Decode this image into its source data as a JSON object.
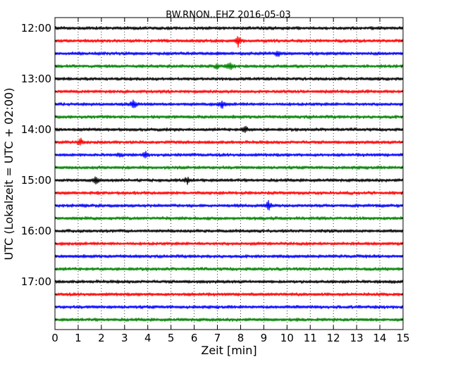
{
  "chart_data": {
    "type": "line",
    "title": "BW.RNON..EHZ 2016-05-03",
    "xlabel": "Zeit  [min]",
    "ylabel": "UTC (Lokalzeit = UTC + 02:00)",
    "xlim": [
      0,
      15
    ],
    "x_ticks": [
      0,
      1,
      2,
      3,
      4,
      5,
      6,
      7,
      8,
      9,
      10,
      11,
      12,
      13,
      14,
      15
    ],
    "x_tick_labels": [
      "0",
      "1",
      "2",
      "3",
      "4",
      "5",
      "6",
      "7",
      "8",
      "9",
      "10",
      "11",
      "12",
      "13",
      "14",
      "15"
    ],
    "y_tick_labels": [
      "12:00",
      "13:00",
      "14:00",
      "15:00",
      "16:00",
      "17:00"
    ],
    "y_tick_trace_index": [
      0,
      4,
      8,
      12,
      16,
      20
    ],
    "grid": "vertical dotted",
    "trace_colors": [
      "#000000",
      "#ff0000",
      "#0000ff",
      "#008000"
    ],
    "series": [
      {
        "start": "12:00",
        "color": "#000000",
        "events": []
      },
      {
        "start": "12:15",
        "color": "#ff0000",
        "events": [
          {
            "x": 7.9,
            "amp": 9
          }
        ]
      },
      {
        "start": "12:30",
        "color": "#0000ff",
        "events": [
          {
            "x": 9.6,
            "amp": 4
          }
        ]
      },
      {
        "start": "12:45",
        "color": "#008000",
        "events": [
          {
            "x": 7.0,
            "amp": 4
          },
          {
            "x": 7.55,
            "amp": 7
          }
        ]
      },
      {
        "start": "13:00",
        "color": "#000000",
        "events": []
      },
      {
        "start": "13:15",
        "color": "#ff0000",
        "events": []
      },
      {
        "start": "13:30",
        "color": "#0000ff",
        "events": [
          {
            "x": 3.4,
            "amp": 7
          },
          {
            "x": 7.2,
            "amp": 6
          }
        ]
      },
      {
        "start": "13:45",
        "color": "#008000",
        "events": []
      },
      {
        "start": "14:00",
        "color": "#000000",
        "events": [
          {
            "x": 8.2,
            "amp": 5
          }
        ]
      },
      {
        "start": "14:15",
        "color": "#ff0000",
        "events": [
          {
            "x": 1.1,
            "amp": 5
          }
        ]
      },
      {
        "start": "14:30",
        "color": "#0000ff",
        "events": [
          {
            "x": 2.8,
            "amp": 3
          },
          {
            "x": 3.9,
            "amp": 4
          }
        ]
      },
      {
        "start": "14:45",
        "color": "#008000",
        "events": []
      },
      {
        "start": "15:00",
        "color": "#000000",
        "events": [
          {
            "x": 1.75,
            "amp": 5
          },
          {
            "x": 5.7,
            "amp": 5
          }
        ]
      },
      {
        "start": "15:15",
        "color": "#ff0000",
        "events": []
      },
      {
        "start": "15:30",
        "color": "#0000ff",
        "events": [
          {
            "x": 9.2,
            "amp": 7
          }
        ]
      },
      {
        "start": "15:45",
        "color": "#008000",
        "events": []
      },
      {
        "start": "16:00",
        "color": "#000000",
        "events": []
      },
      {
        "start": "16:15",
        "color": "#ff0000",
        "events": []
      },
      {
        "start": "16:30",
        "color": "#0000ff",
        "events": []
      },
      {
        "start": "16:45",
        "color": "#008000",
        "events": []
      },
      {
        "start": "17:00",
        "color": "#000000",
        "events": []
      },
      {
        "start": "17:15",
        "color": "#ff0000",
        "events": []
      },
      {
        "start": "17:30",
        "color": "#0000ff",
        "events": []
      },
      {
        "start": "17:45",
        "color": "#008000",
        "events": []
      }
    ]
  }
}
